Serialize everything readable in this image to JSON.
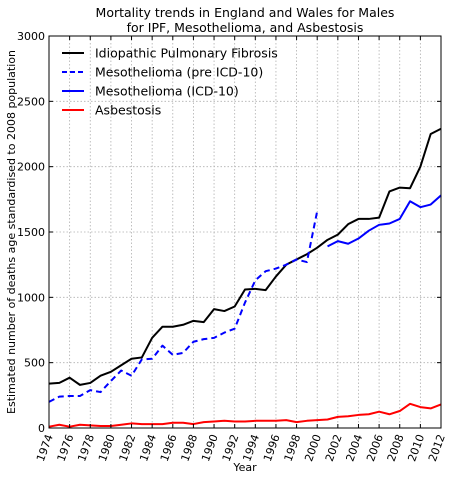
{
  "chart_data": {
    "type": "line",
    "title_lines": [
      "Mortality trends in England and Wales for Males",
      "for IPF, Mesothelioma, and Asbestosis"
    ],
    "xlabel": "Year",
    "ylabel": "Estimated number of deaths age standardised to 2008 population",
    "xlim": [
      1974,
      2012
    ],
    "ylim": [
      0,
      3000
    ],
    "xticks": [
      1974,
      1976,
      1978,
      1980,
      1982,
      1984,
      1986,
      1988,
      1990,
      1992,
      1994,
      1996,
      1998,
      2000,
      2002,
      2004,
      2006,
      2008,
      2010,
      2012
    ],
    "xtick_labels": [
      "1974",
      "1976",
      "1978",
      "1980",
      "1982",
      "1984",
      "1986",
      "1988",
      "1990",
      "1992",
      "1994",
      "1996",
      "1998",
      "2000",
      "2002",
      "2004",
      "2006",
      "2008",
      "2010",
      "2012"
    ],
    "yticks": [
      0,
      500,
      1000,
      1500,
      2000,
      2500,
      3000
    ],
    "ytick_labels": [
      "0",
      "500",
      "1000",
      "1500",
      "2000",
      "2500",
      "3000"
    ],
    "grid": true,
    "legend_position": "top-left",
    "series": [
      {
        "name": "Idiopathic Pulmonary Fibrosis",
        "color": "#000000",
        "style": "solid",
        "x": [
          1974,
          1975,
          1976,
          1977,
          1978,
          1979,
          1980,
          1981,
          1982,
          1983,
          1984,
          1985,
          1986,
          1987,
          1988,
          1989,
          1990,
          1991,
          1992,
          1993,
          1994,
          1995,
          1996,
          1997,
          1998,
          1999,
          2000,
          2001,
          2002,
          2003,
          2004,
          2005,
          2006,
          2007,
          2008,
          2009,
          2010,
          2011,
          2012
        ],
        "y": [
          340,
          345,
          385,
          330,
          345,
          400,
          430,
          480,
          530,
          540,
          690,
          775,
          775,
          790,
          820,
          810,
          910,
          895,
          930,
          1060,
          1065,
          1055,
          1160,
          1250,
          1290,
          1330,
          1380,
          1440,
          1480,
          1560,
          1600,
          1600,
          1610,
          1810,
          1840,
          1835,
          2000,
          2250,
          2290
        ]
      },
      {
        "name": "Mesothelioma (pre ICD-10)",
        "color": "#0000ff",
        "style": "dashed",
        "x": [
          1974,
          1975,
          1976,
          1977,
          1978,
          1979,
          1980,
          1981,
          1982,
          1983,
          1984,
          1985,
          1986,
          1987,
          1988,
          1989,
          1990,
          1991,
          1992,
          1993,
          1994,
          1995,
          1996,
          1997,
          1998,
          1999,
          2000
        ],
        "y": [
          200,
          240,
          245,
          245,
          290,
          275,
          360,
          440,
          400,
          525,
          530,
          630,
          560,
          575,
          660,
          680,
          690,
          730,
          760,
          960,
          1130,
          1200,
          1220,
          1250,
          1290,
          1270,
          1660
        ]
      },
      {
        "name": "Mesothelioma (ICD-10)",
        "color": "#0000ff",
        "style": "solid",
        "x": [
          2001,
          2002,
          2003,
          2004,
          2005,
          2006,
          2007,
          2008,
          2009,
          2010,
          2011,
          2012
        ],
        "y": [
          1390,
          1430,
          1410,
          1450,
          1510,
          1555,
          1565,
          1600,
          1735,
          1690,
          1710,
          1780
        ]
      },
      {
        "name": "Asbestosis",
        "color": "#ff0000",
        "style": "solid",
        "x": [
          1974,
          1975,
          1976,
          1977,
          1978,
          1979,
          1980,
          1981,
          1982,
          1983,
          1984,
          1985,
          1986,
          1987,
          1988,
          1989,
          1990,
          1991,
          1992,
          1993,
          1994,
          1995,
          1996,
          1997,
          1998,
          1999,
          2000,
          2001,
          2002,
          2003,
          2004,
          2005,
          2006,
          2007,
          2008,
          2009,
          2010,
          2011,
          2012
        ],
        "y": [
          10,
          25,
          10,
          25,
          20,
          15,
          15,
          25,
          35,
          30,
          30,
          30,
          40,
          40,
          30,
          45,
          50,
          55,
          50,
          50,
          55,
          55,
          55,
          60,
          45,
          55,
          60,
          65,
          85,
          90,
          100,
          105,
          125,
          105,
          130,
          185,
          160,
          150,
          180
        ]
      }
    ]
  }
}
